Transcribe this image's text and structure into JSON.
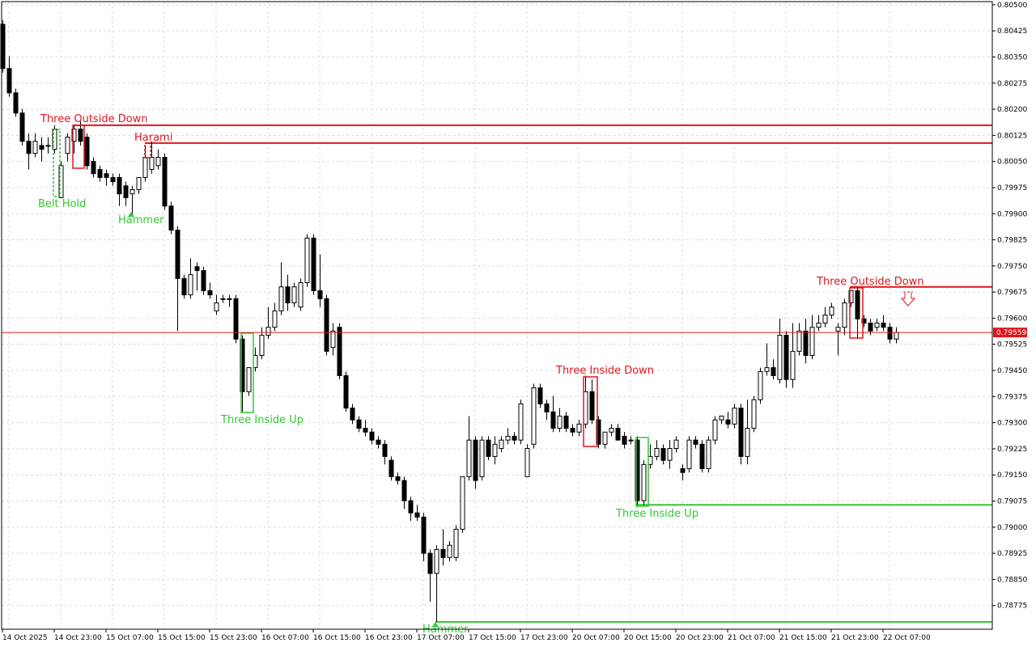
{
  "chart_data": {
    "type": "candlestick",
    "current_price": 0.79559,
    "grid": true,
    "bull_color": "#ffffff",
    "bear_color": "#000000",
    "ylim": [
      0.78707,
      0.80509
    ],
    "yticks": [
      {
        "value": 0.805,
        "label": "0.80500"
      },
      0.80425,
      {
        "value": 0.8035,
        "label": "0.80350"
      },
      0.80275,
      {
        "value": 0.802,
        "label": "0.80200"
      },
      0.80125,
      {
        "value": 0.8005,
        "label": "0.80050"
      },
      0.79975,
      {
        "value": 0.799,
        "label": "0.79900"
      },
      0.79825,
      {
        "value": 0.7975,
        "label": "0.79750"
      },
      0.79675,
      {
        "value": 0.796,
        "label": "0.79600"
      },
      0.79525,
      {
        "value": 0.7945,
        "label": "0.79450"
      },
      0.79375,
      {
        "value": 0.793,
        "label": "0.79300"
      },
      0.79225,
      {
        "value": 0.7915,
        "label": "0.79150"
      },
      0.79075,
      {
        "value": 0.79,
        "label": "0.79000"
      },
      0.78925,
      {
        "value": 0.7885,
        "label": "0.78850"
      },
      0.78775
    ],
    "categories": [
      null,
      "14 Oct 2025",
      null,
      null,
      null,
      null,
      null,
      null,
      null,
      "14 Oct 23:00",
      null,
      null,
      null,
      null,
      null,
      null,
      null,
      "15 Oct 07:00",
      null,
      null,
      null,
      null,
      null,
      null,
      null,
      "15 Oct 15:00",
      null,
      null,
      null,
      null,
      null,
      null,
      null,
      "15 Oct 23:00",
      null,
      null,
      null,
      null,
      null,
      null,
      null,
      "16 Oct 07:00",
      null,
      null,
      null,
      null,
      null,
      null,
      null,
      "16 Oct 15:00",
      null,
      null,
      null,
      null,
      null,
      null,
      null,
      "16 Oct 23:00",
      null,
      null,
      null,
      null,
      null,
      null,
      null,
      "17 Oct 07:00",
      null,
      null,
      null,
      null,
      null,
      null,
      null,
      "17 Oct 15:00",
      null,
      null,
      null,
      null,
      null,
      null,
      null,
      "17 Oct 23:00",
      null,
      null,
      null,
      null,
      null,
      null,
      null,
      "20 Oct 07:00",
      null,
      null,
      null,
      null,
      null,
      null,
      null,
      "20 Oct 15:00",
      null,
      null,
      null,
      null,
      null,
      null,
      null,
      "20 Oct 23:00",
      null,
      null,
      null,
      null,
      null,
      null,
      null,
      "21 Oct 07:00",
      null,
      null,
      null,
      null,
      null,
      null,
      null,
      "21 Oct 15:00",
      null,
      null,
      null,
      null,
      null,
      null,
      null,
      "21 Oct 23:00",
      null,
      null,
      null,
      null,
      null,
      null,
      null,
      "22 Oct 07:00",
      null
    ],
    "ohlc": [
      [
        0.80444,
        0.80456,
        0.80305,
        0.80317
      ],
      [
        0.80317,
        0.80352,
        0.80236,
        0.80247
      ],
      [
        0.80247,
        0.80259,
        0.80178,
        0.80189
      ],
      [
        0.80189,
        0.80201,
        0.80096,
        0.80108
      ],
      [
        0.80108,
        0.80131,
        0.80027,
        0.80073
      ],
      [
        0.80073,
        0.80131,
        0.80062,
        0.80108
      ],
      [
        0.80096,
        0.8012,
        0.8005,
        0.80085
      ],
      [
        0.80096,
        0.8012,
        0.80073,
        0.80096
      ],
      [
        0.80085,
        0.80154,
        0.80073,
        0.80143
      ],
      [
        0.79946,
        0.8005,
        0.79946,
        0.80038
      ],
      [
        0.80073,
        0.80131,
        0.8005,
        0.8012
      ],
      [
        0.80108,
        0.80154,
        0.80073,
        0.80143
      ],
      [
        0.80143,
        0.80166,
        0.80096,
        0.80108
      ],
      [
        0.8012,
        0.80131,
        0.80027,
        0.80038
      ],
      [
        0.8005,
        0.80062,
        0.80004,
        0.80015
      ],
      [
        0.80027,
        0.80038,
        0.79992,
        0.80004
      ],
      [
        0.80015,
        0.80027,
        0.7998,
        0.80004
      ],
      [
        0.80004,
        0.80015,
        0.7998,
        0.79992
      ],
      [
        0.80004,
        0.80015,
        0.79922,
        0.79957
      ],
      [
        0.7998,
        0.79992,
        0.79922,
        0.79946
      ],
      [
        0.79957,
        0.7998,
        0.79899,
        0.79969
      ],
      [
        0.79969,
        0.80004,
        0.79957,
        0.80004
      ],
      [
        0.80004,
        0.80096,
        0.79992,
        0.80062
      ],
      [
        0.80027,
        0.80108,
        0.80015,
        0.80062
      ],
      [
        0.80038,
        0.80085,
        0.80027,
        0.80062
      ],
      [
        0.80062,
        0.80073,
        0.79911,
        0.79922
      ],
      [
        0.79922,
        0.79934,
        0.79841,
        0.79853
      ],
      [
        0.79853,
        0.79864,
        0.79563,
        0.79714
      ],
      [
        0.79714,
        0.79725,
        0.79656,
        0.79667
      ],
      [
        0.79667,
        0.79772,
        0.79656,
        0.79725
      ],
      [
        0.79748,
        0.7976,
        0.79679,
        0.79737
      ],
      [
        0.79737,
        0.79748,
        0.79667,
        0.79679
      ],
      [
        0.79679,
        0.79702,
        0.79656,
        0.79667
      ],
      [
        0.79621,
        0.79667,
        0.79609,
        0.79644
      ],
      [
        0.79656,
        0.79667,
        0.79644,
        0.79656
      ],
      [
        0.79656,
        0.79667,
        0.79632,
        0.79656
      ],
      [
        0.79656,
        0.79667,
        0.79528,
        0.7954
      ],
      [
        0.7954,
        0.79551,
        0.79331,
        0.79389
      ],
      [
        0.79389,
        0.79458,
        0.79377,
        0.79458
      ],
      [
        0.79458,
        0.79516,
        0.79447,
        0.79493
      ],
      [
        0.79493,
        0.79574,
        0.79482,
        0.79551
      ],
      [
        0.79551,
        0.79632,
        0.7954,
        0.79574
      ],
      [
        0.79574,
        0.79644,
        0.79563,
        0.79621
      ],
      [
        0.79621,
        0.7976,
        0.79609,
        0.7969
      ],
      [
        0.7969,
        0.79725,
        0.79621,
        0.79644
      ],
      [
        0.79644,
        0.79702,
        0.79632,
        0.7969
      ],
      [
        0.79632,
        0.79714,
        0.79621,
        0.79702
      ],
      [
        0.79702,
        0.79841,
        0.7969,
        0.7983
      ],
      [
        0.7983,
        0.79841,
        0.79667,
        0.79679
      ],
      [
        0.79679,
        0.79783,
        0.79632,
        0.79656
      ],
      [
        0.79656,
        0.79667,
        0.79493,
        0.79505
      ],
      [
        0.79516,
        0.79586,
        0.79493,
        0.79563
      ],
      [
        0.79574,
        0.79586,
        0.79424,
        0.79435
      ],
      [
        0.79435,
        0.79447,
        0.79331,
        0.79342
      ],
      [
        0.79342,
        0.79354,
        0.79296,
        0.79308
      ],
      [
        0.79308,
        0.79319,
        0.79273,
        0.79284
      ],
      [
        0.79284,
        0.79308,
        0.79261,
        0.79273
      ],
      [
        0.79273,
        0.79284,
        0.79238,
        0.7925
      ],
      [
        0.7925,
        0.79261,
        0.79226,
        0.79238
      ],
      [
        0.79238,
        0.7925,
        0.7918,
        0.79203
      ],
      [
        0.79192,
        0.79203,
        0.79134,
        0.79145
      ],
      [
        0.79145,
        0.79157,
        0.79122,
        0.79134
      ],
      [
        0.79134,
        0.79145,
        0.79052,
        0.79076
      ],
      [
        0.79076,
        0.79087,
        0.79018,
        0.79041
      ],
      [
        0.79041,
        0.79064,
        0.79018,
        0.79029
      ],
      [
        0.79029,
        0.79041,
        0.78902,
        0.78925
      ],
      [
        0.78925,
        0.78936,
        0.78786,
        0.78867
      ],
      [
        0.78867,
        0.78948,
        0.78728,
        0.78936
      ],
      [
        0.78936,
        0.78994,
        0.7889,
        0.78913
      ],
      [
        0.78913,
        0.7896,
        0.78902,
        0.78948
      ],
      [
        0.78913,
        0.79006,
        0.78902,
        0.78994
      ],
      [
        0.78994,
        0.79145,
        0.78983,
        0.79145
      ],
      [
        0.79145,
        0.79319,
        0.79134,
        0.7925
      ],
      [
        0.7925,
        0.79261,
        0.7911,
        0.79134
      ],
      [
        0.79145,
        0.79261,
        0.79134,
        0.7925
      ],
      [
        0.7925,
        0.79261,
        0.79192,
        0.79203
      ],
      [
        0.79203,
        0.79261,
        0.7918,
        0.79238
      ],
      [
        0.79226,
        0.79261,
        0.79215,
        0.7925
      ],
      [
        0.7925,
        0.79284,
        0.79238,
        0.79261
      ],
      [
        0.79261,
        0.79273,
        0.79238,
        0.7925
      ],
      [
        0.7925,
        0.79366,
        0.79238,
        0.79354
      ],
      [
        0.79145,
        0.79238,
        0.79145,
        0.79226
      ],
      [
        0.79238,
        0.79412,
        0.79226,
        0.794
      ],
      [
        0.794,
        0.79412,
        0.79342,
        0.79354
      ],
      [
        0.79354,
        0.79366,
        0.79308,
        0.79331
      ],
      [
        0.79331,
        0.79377,
        0.79273,
        0.79284
      ],
      [
        0.79284,
        0.79342,
        0.79273,
        0.79319
      ],
      [
        0.79319,
        0.79331,
        0.79273,
        0.79284
      ],
      [
        0.79284,
        0.79296,
        0.79261,
        0.79273
      ],
      [
        0.79273,
        0.79308,
        0.79261,
        0.79296
      ],
      [
        0.79296,
        0.79435,
        0.79284,
        0.79389
      ],
      [
        0.79389,
        0.79424,
        0.79296,
        0.79308
      ],
      [
        0.79308,
        0.79319,
        0.79226,
        0.79238
      ],
      [
        0.79238,
        0.79273,
        0.79226,
        0.79273
      ],
      [
        0.79273,
        0.79296,
        0.79261,
        0.79284
      ],
      [
        0.79284,
        0.79296,
        0.7925,
        0.7925
      ],
      [
        0.79261,
        0.79273,
        0.79226,
        0.79238
      ],
      [
        0.7925,
        0.79261,
        0.79238,
        0.7925
      ],
      [
        0.7925,
        0.79261,
        0.79064,
        0.79076
      ],
      [
        0.79076,
        0.79192,
        0.79064,
        0.7918
      ],
      [
        0.7918,
        0.79238,
        0.79168,
        0.79203
      ],
      [
        0.79203,
        0.7925,
        0.79192,
        0.79226
      ],
      [
        0.79226,
        0.79238,
        0.7918,
        0.79192
      ],
      [
        0.79192,
        0.7925,
        0.79168,
        0.79226
      ],
      [
        0.79226,
        0.79261,
        0.79215,
        0.7925
      ],
      [
        0.79168,
        0.7918,
        0.79134,
        0.79157
      ],
      [
        0.79168,
        0.79261,
        0.79157,
        0.7925
      ],
      [
        0.7925,
        0.79261,
        0.79226,
        0.79238
      ],
      [
        0.79238,
        0.7925,
        0.79157,
        0.79168
      ],
      [
        0.79168,
        0.79261,
        0.79157,
        0.7925
      ],
      [
        0.7925,
        0.79319,
        0.79238,
        0.79308
      ],
      [
        0.79308,
        0.79319,
        0.79296,
        0.79319
      ],
      [
        0.79308,
        0.79331,
        0.79284,
        0.79296
      ],
      [
        0.79296,
        0.79354,
        0.79284,
        0.79342
      ],
      [
        0.79342,
        0.79354,
        0.7918,
        0.79203
      ],
      [
        0.79203,
        0.79366,
        0.7918,
        0.79284
      ],
      [
        0.79284,
        0.79377,
        0.79273,
        0.79366
      ],
      [
        0.79366,
        0.79458,
        0.79354,
        0.79447
      ],
      [
        0.79447,
        0.79528,
        0.79435,
        0.79458
      ],
      [
        0.79458,
        0.79482,
        0.79424,
        0.79435
      ],
      [
        0.79424,
        0.79598,
        0.79412,
        0.79551
      ],
      [
        0.79551,
        0.79563,
        0.794,
        0.79424
      ],
      [
        0.79424,
        0.79586,
        0.794,
        0.79505
      ],
      [
        0.79505,
        0.79586,
        0.79493,
        0.79563
      ],
      [
        0.79563,
        0.79598,
        0.7947,
        0.79493
      ],
      [
        0.79493,
        0.79609,
        0.79482,
        0.79574
      ],
      [
        0.79574,
        0.79609,
        0.79563,
        0.79586
      ],
      [
        0.79586,
        0.79632,
        0.79574,
        0.79609
      ],
      [
        0.79609,
        0.79644,
        0.79598,
        0.79632
      ],
      [
        0.79563,
        0.79586,
        0.79493,
        0.79574
      ],
      [
        0.79574,
        0.79656,
        0.79551,
        0.79644
      ],
      [
        0.79644,
        0.79679,
        0.79632,
        0.79679
      ],
      [
        0.79679,
        0.7969,
        0.7954,
        0.79598
      ],
      [
        0.79598,
        0.79609,
        0.79574,
        0.79586
      ],
      [
        0.79586,
        0.79598,
        0.79551,
        0.79563
      ],
      [
        0.79574,
        0.79598,
        0.79563,
        0.79586
      ],
      [
        0.79586,
        0.79609,
        0.79563,
        0.79574
      ],
      [
        0.79574,
        0.79586,
        0.79528,
        0.7954
      ],
      [
        0.7954,
        0.79574,
        0.79528,
        0.79559
      ]
    ],
    "annotations": [
      {
        "text": "Three Outside Down",
        "color": "#e0161c",
        "level": 0.80154
      },
      {
        "text": "Harami",
        "color": "#e0161c",
        "level": 0.80103
      },
      {
        "text": "Belt Hold",
        "color": "#32c832"
      },
      {
        "text": "Hammer",
        "color": "#32c832"
      },
      {
        "text": "Three Inside Up",
        "color": "#32c832"
      },
      {
        "text": "Three Inside Down",
        "color": "#e0161c"
      },
      {
        "text": "Three Inside Up",
        "color": "#32c832",
        "level": 0.79064
      },
      {
        "text": "Three Outside Down",
        "color": "#e0161c",
        "level": 0.7969
      },
      {
        "text": "Hammer",
        "color": "#32c832",
        "level": 0.78728
      }
    ]
  }
}
